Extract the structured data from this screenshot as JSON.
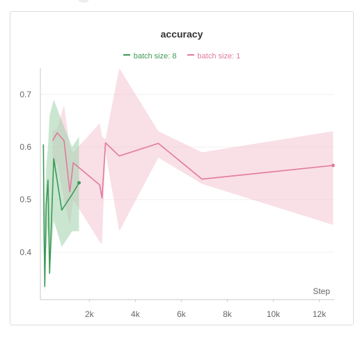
{
  "chart_data": {
    "type": "line",
    "title": "accuracy",
    "xlabel": "Step",
    "ylabel": "",
    "xlim": [
      -100,
      12650
    ],
    "ylim": [
      0.31,
      0.75
    ],
    "x_ticks": [
      2000,
      4000,
      6000,
      8000,
      10000,
      12000
    ],
    "x_tick_labels": [
      "2k",
      "4k",
      "6k",
      "8k",
      "10k",
      "12k"
    ],
    "y_ticks": [
      0.4,
      0.5,
      0.6,
      0.7
    ],
    "y_tick_labels": [
      "0.4",
      "0.5",
      "0.6",
      "0.7"
    ],
    "grid": true,
    "legend_position": "top-center",
    "series": [
      {
        "name": "batch size: 8",
        "color": "#3c9a56",
        "band_color": "#9fd1ac",
        "x": [
          0,
          30,
          60,
          120,
          200,
          270,
          450,
          800,
          1250,
          1550
        ],
        "y": [
          0.605,
          0.445,
          0.335,
          0.49,
          0.537,
          0.36,
          0.578,
          0.48,
          0.51,
          0.532
        ],
        "band_upper": [
          0.6,
          0.55,
          0.47,
          0.56,
          0.6,
          0.66,
          0.69,
          0.65,
          0.6,
          0.62
        ],
        "band_lower": [
          0.42,
          0.38,
          0.32,
          0.4,
          0.45,
          0.36,
          0.46,
          0.41,
          0.44,
          0.44
        ]
      },
      {
        "name": "batch size: 1",
        "color": "#e07a9c",
        "band_color": "#f4c4d2",
        "x": [
          400,
          600,
          900,
          1150,
          1300,
          2450,
          2550,
          2700,
          3300,
          5000,
          6900,
          12600
        ],
        "y": [
          0.612,
          0.627,
          0.612,
          0.515,
          0.57,
          0.528,
          0.503,
          0.608,
          0.583,
          0.607,
          0.539,
          0.565
        ],
        "band_upper": [
          0.63,
          0.635,
          0.68,
          0.6,
          0.59,
          0.645,
          0.62,
          0.615,
          0.75,
          0.63,
          0.59,
          0.63
        ],
        "band_lower": [
          0.56,
          0.57,
          0.5,
          0.45,
          0.5,
          0.42,
          0.415,
          0.59,
          0.44,
          0.58,
          0.53,
          0.452
        ]
      }
    ]
  }
}
